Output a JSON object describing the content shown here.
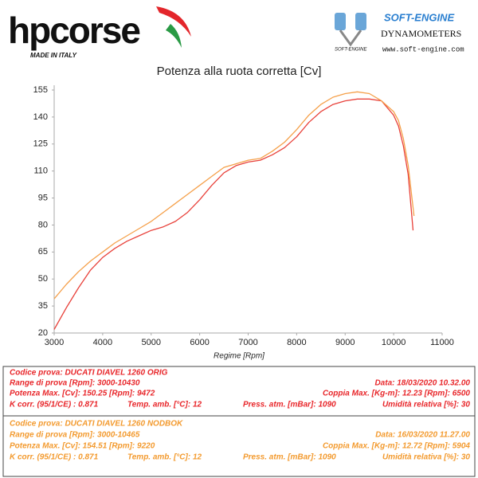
{
  "header": {
    "brand": "hpcorse",
    "brand_sub": "MADE IN ITALY",
    "partner": "SOFT-ENGINE",
    "partner_icon_text": "SOFT-ENGINE",
    "partner_sub": "DYNAMOMETERS",
    "partner_url": "www.soft-engine.com"
  },
  "chart_data": {
    "type": "line",
    "title": "Potenza alla ruota corretta [Cv]",
    "x_label": "Regime [Rpm]",
    "xlim": [
      3000,
      11000
    ],
    "xticks": [
      3000,
      4000,
      5000,
      6000,
      7000,
      8000,
      9000,
      10000,
      11000
    ],
    "ylim": [
      20,
      155
    ],
    "yticks": [
      20,
      35,
      50,
      65,
      80,
      95,
      110,
      125,
      140,
      155
    ],
    "grid": false,
    "series": [
      {
        "color": "#e8413a",
        "x": [
          3000,
          3250,
          3500,
          3750,
          4000,
          4250,
          4500,
          4750,
          5000,
          5250,
          5500,
          5750,
          6000,
          6250,
          6500,
          6750,
          7000,
          7250,
          7500,
          7750,
          8000,
          8250,
          8500,
          8750,
          9000,
          9250,
          9500,
          9750,
          10000,
          10100,
          10200,
          10300,
          10400
        ],
        "values": [
          22,
          34,
          45,
          55,
          62,
          67,
          71,
          74,
          77,
          79,
          82,
          87,
          94,
          102,
          109,
          113,
          115,
          116,
          119,
          123,
          129,
          137,
          143,
          147,
          149,
          150,
          150,
          149,
          141,
          135,
          124,
          108,
          77
        ]
      },
      {
        "color": "#f5a04a",
        "x": [
          3000,
          3250,
          3500,
          3750,
          4000,
          4250,
          4500,
          4750,
          5000,
          5250,
          5500,
          5750,
          6000,
          6250,
          6500,
          6750,
          7000,
          7250,
          7500,
          7750,
          8000,
          8250,
          8500,
          8750,
          9000,
          9250,
          9500,
          9750,
          10000,
          10100,
          10200,
          10300,
          10420
        ],
        "values": [
          39,
          47,
          54,
          60,
          65,
          70,
          74,
          78,
          82,
          87,
          92,
          97,
          102,
          107,
          112,
          114,
          116,
          117,
          121,
          126,
          133,
          141,
          147,
          151,
          153,
          154,
          153,
          149,
          143,
          138,
          128,
          113,
          85
        ]
      }
    ]
  },
  "runs": [
    {
      "color": "#e8262a",
      "rows": [
        [
          "Codice prova: DUCATI DIAVEL 1260 ORIG"
        ],
        [
          "Range di prova [Rpm]: 3000-10430",
          "Data: 18/03/2020  10.32.00"
        ],
        [
          "Potenza Max. [Cv]: 150.25  [Rpm]: 9472",
          "Coppia Max. [Kg-m]: 12.23  [Rpm]: 6500"
        ],
        [
          "K corr. (95/1/CE) : 0.871",
          "Temp. amb. [°C]: 12",
          "Press. atm. [mBar]: 1090",
          "Umidità relativa [%]: 30"
        ]
      ]
    },
    {
      "color": "#f39a2e",
      "rows": [
        [
          "Codice prova: DUCATI DIAVEL 1260 NODBOK"
        ],
        [
          "Range di prova [Rpm]: 3000-10465",
          "Data: 16/03/2020  11.27.00"
        ],
        [
          "Potenza Max. [Cv]: 154.51  [Rpm]: 9220",
          "Coppia Max. [Kg-m]: 12.72  [Rpm]: 5904"
        ],
        [
          "K corr. (95/1/CE) : 0.871",
          "Temp. amb. [°C]: 12",
          "Press. atm. [mBar]: 1090",
          "Umidità relativa [%]: 30"
        ]
      ]
    }
  ]
}
